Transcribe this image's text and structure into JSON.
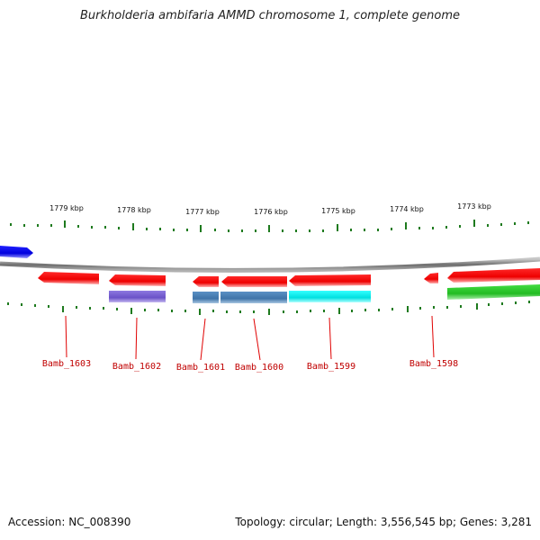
{
  "title": "Burkholderia ambifaria AMMD chromosome 1, complete genome",
  "footer": {
    "accession": "Accession: NC_008390",
    "topology": "Topology: circular; Length: 3,556,545 bp; Genes: 3,281"
  },
  "colors": {
    "genome_line": "#8a8a8a",
    "tick": "#1e7a1e",
    "gene_label": "#c00000",
    "gene_red": "#ff0000",
    "gene_blue": "#0000ee",
    "cog_purple": "#7a62d4",
    "cog_steelblue": "#4f84b8",
    "cog_cyan": "#11eeee",
    "cog_green": "#33cc33"
  },
  "scale_labels": [
    "1779 kbp",
    "1778 kbp",
    "1777 kbp",
    "1776 kbp",
    "1775 kbp",
    "1774 kbp",
    "1773 kbp"
  ],
  "gene_labels": [
    "Bamb_1603",
    "Bamb_1602",
    "Bamb_1601",
    "Bamb_1600",
    "Bamb_1599",
    "Bamb_1598"
  ]
}
